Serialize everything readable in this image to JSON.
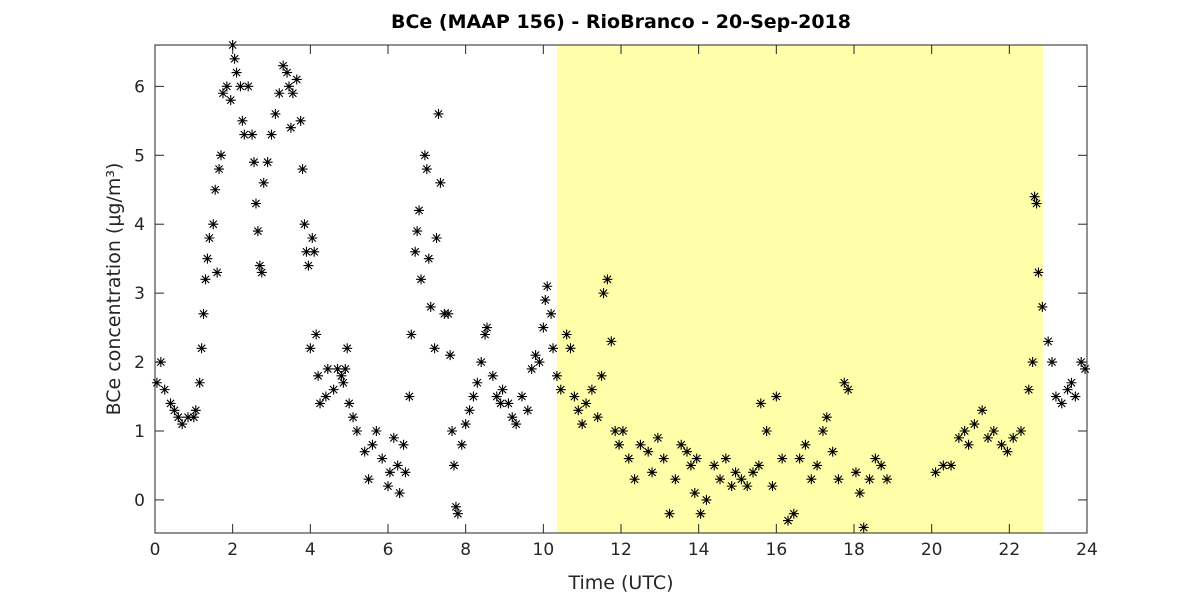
{
  "chart_data": {
    "type": "scatter",
    "title": "BCe (MAAP 156) - RioBranco - 20-Sep-2018",
    "xlabel": "Time (UTC)",
    "ylabel": "BCe concentration (μg/m³)",
    "color": "#000000",
    "shaded_region": [
      10.35,
      22.87
    ],
    "shaded_color": "#ffffaa",
    "xlim": [
      0,
      24
    ],
    "xticks": [
      0,
      2,
      4,
      6,
      8,
      10,
      12,
      14,
      16,
      18,
      20,
      22,
      24
    ],
    "ylim": [
      -0.48,
      6.6
    ],
    "yticks": [
      0,
      1,
      2,
      3,
      4,
      5,
      6
    ],
    "x": [
      0.05,
      0.15,
      0.25,
      0.4,
      0.5,
      0.6,
      0.7,
      0.85,
      1.0,
      1.05,
      1.15,
      1.2,
      1.25,
      1.3,
      1.35,
      1.4,
      1.5,
      1.55,
      1.6,
      1.65,
      1.7,
      1.75,
      1.85,
      1.95,
      2.0,
      2.05,
      2.1,
      2.2,
      2.25,
      2.3,
      2.4,
      2.5,
      2.55,
      2.6,
      2.65,
      2.7,
      2.75,
      2.8,
      2.9,
      3.0,
      3.1,
      3.2,
      3.3,
      3.4,
      3.45,
      3.5,
      3.55,
      3.65,
      3.75,
      3.8,
      3.85,
      3.9,
      3.95,
      4.05,
      4.1,
      4.0,
      4.15,
      4.2,
      4.25,
      4.4,
      4.45,
      4.6,
      4.7,
      4.8,
      4.85,
      4.9,
      4.95,
      5.0,
      5.1,
      5.2,
      5.4,
      5.5,
      5.6,
      5.7,
      5.85,
      6.0,
      6.05,
      6.15,
      6.25,
      6.3,
      6.4,
      6.45,
      6.55,
      6.6,
      6.7,
      6.75,
      6.8,
      6.85,
      6.95,
      7.0,
      7.05,
      7.1,
      7.2,
      7.25,
      7.3,
      7.35,
      7.45,
      7.55,
      7.6,
      7.65,
      7.7,
      7.75,
      7.8,
      7.9,
      8.0,
      8.1,
      8.2,
      8.3,
      8.4,
      8.5,
      8.55,
      8.7,
      8.8,
      8.9,
      8.95,
      9.1,
      9.2,
      9.3,
      9.45,
      9.6,
      9.7,
      9.8,
      9.9,
      10.0,
      10.05,
      10.1,
      10.2,
      10.25,
      10.35,
      10.45,
      10.6,
      10.7,
      10.8,
      10.9,
      11.0,
      11.1,
      11.25,
      11.4,
      11.5,
      11.55,
      11.65,
      11.75,
      11.85,
      11.95,
      12.05,
      12.2,
      12.35,
      12.5,
      12.7,
      12.8,
      12.95,
      13.1,
      13.25,
      13.4,
      13.55,
      13.7,
      13.8,
      13.9,
      13.95,
      14.05,
      14.2,
      14.4,
      14.55,
      14.7,
      14.85,
      14.95,
      15.1,
      15.25,
      15.4,
      15.55,
      15.6,
      15.75,
      15.9,
      16.0,
      16.15,
      16.3,
      16.45,
      16.6,
      16.75,
      16.9,
      17.05,
      17.2,
      17.3,
      17.45,
      17.6,
      17.75,
      17.85,
      18.05,
      18.15,
      18.25,
      18.4,
      18.55,
      18.7,
      18.85,
      20.1,
      20.3,
      20.5,
      20.7,
      20.85,
      20.95,
      21.1,
      21.3,
      21.45,
      21.6,
      21.8,
      21.95,
      22.1,
      22.3,
      22.5,
      22.6,
      22.65,
      22.7,
      22.75,
      22.85,
      23.0,
      23.1,
      23.2,
      23.35,
      23.5,
      23.6,
      23.7,
      23.85,
      23.95
    ],
    "values": [
      1.7,
      2.0,
      1.6,
      1.4,
      1.3,
      1.2,
      1.1,
      1.2,
      1.2,
      1.3,
      1.7,
      2.2,
      2.7,
      3.2,
      3.5,
      3.8,
      4.0,
      4.5,
      3.3,
      4.8,
      5.0,
      5.9,
      6.0,
      5.8,
      6.6,
      6.4,
      6.2,
      6.0,
      5.5,
      5.3,
      6.0,
      5.3,
      4.9,
      4.3,
      3.9,
      3.4,
      3.3,
      4.6,
      4.9,
      5.3,
      5.6,
      5.9,
      6.3,
      6.2,
      6.0,
      5.4,
      5.9,
      6.1,
      5.5,
      4.8,
      4.0,
      3.6,
      3.4,
      3.8,
      3.6,
      2.2,
      2.4,
      1.8,
      1.4,
      1.5,
      1.9,
      1.6,
      1.9,
      1.8,
      1.7,
      1.9,
      2.2,
      1.4,
      1.2,
      1.0,
      0.7,
      0.3,
      0.8,
      1.0,
      0.6,
      0.2,
      0.4,
      0.9,
      0.5,
      0.1,
      0.8,
      0.4,
      1.5,
      2.4,
      3.6,
      3.9,
      4.2,
      3.2,
      5.0,
      4.8,
      3.5,
      2.8,
      2.2,
      3.8,
      5.6,
      4.6,
      2.7,
      2.7,
      2.1,
      1.0,
      0.5,
      -0.1,
      -0.2,
      0.8,
      1.1,
      1.3,
      1.5,
      1.7,
      2.0,
      2.4,
      2.5,
      1.8,
      1.5,
      1.4,
      1.6,
      1.4,
      1.2,
      1.1,
      1.5,
      1.3,
      1.9,
      2.1,
      2.0,
      2.5,
      2.9,
      3.1,
      2.7,
      2.2,
      1.8,
      1.6,
      2.4,
      2.2,
      1.5,
      1.3,
      1.1,
      1.4,
      1.6,
      1.2,
      1.8,
      3.0,
      3.2,
      2.3,
      1.0,
      0.8,
      1.0,
      0.6,
      0.3,
      0.8,
      0.7,
      0.4,
      0.9,
      0.6,
      -0.2,
      0.3,
      0.8,
      0.7,
      0.5,
      0.1,
      0.6,
      -0.2,
      0.0,
      0.5,
      0.3,
      0.6,
      0.2,
      0.4,
      0.3,
      0.2,
      0.4,
      0.5,
      1.4,
      1.0,
      0.2,
      1.5,
      0.6,
      -0.3,
      -0.2,
      0.6,
      0.8,
      0.3,
      0.5,
      1.0,
      1.2,
      0.7,
      0.3,
      1.7,
      1.6,
      0.4,
      0.1,
      -0.4,
      0.3,
      0.6,
      0.5,
      0.3,
      0.4,
      0.5,
      0.5,
      0.9,
      1.0,
      0.8,
      1.1,
      1.3,
      0.9,
      1.0,
      0.8,
      0.7,
      0.9,
      1.0,
      1.6,
      2.0,
      4.4,
      4.3,
      3.3,
      2.8,
      2.3,
      2.0,
      1.5,
      1.4,
      1.6,
      1.7,
      1.5,
      2.0,
      1.9
    ]
  }
}
